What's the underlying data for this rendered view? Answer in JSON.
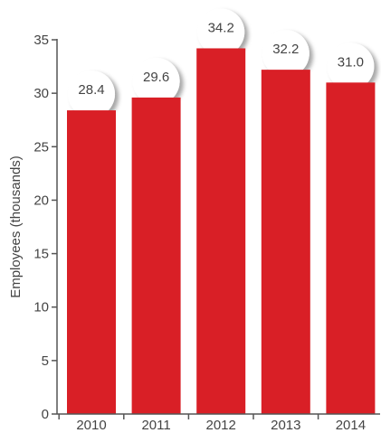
{
  "chart_data": {
    "type": "bar",
    "categories": [
      "2010",
      "2011",
      "2012",
      "2013",
      "2014"
    ],
    "values": [
      28.4,
      29.6,
      34.2,
      32.2,
      31.0
    ],
    "data_labels": [
      "28.4",
      "29.6",
      "34.2",
      "32.2",
      "31.0"
    ],
    "title": "",
    "xlabel": "",
    "ylabel": "Employees (thousands)",
    "ylim": [
      0,
      35
    ],
    "yticks": [
      "0",
      "5",
      "10",
      "15",
      "20",
      "25",
      "30",
      "35"
    ],
    "grid": false,
    "legend": "none",
    "bar_color": "#d91f26",
    "label_bubble_color": "#ffffff"
  }
}
